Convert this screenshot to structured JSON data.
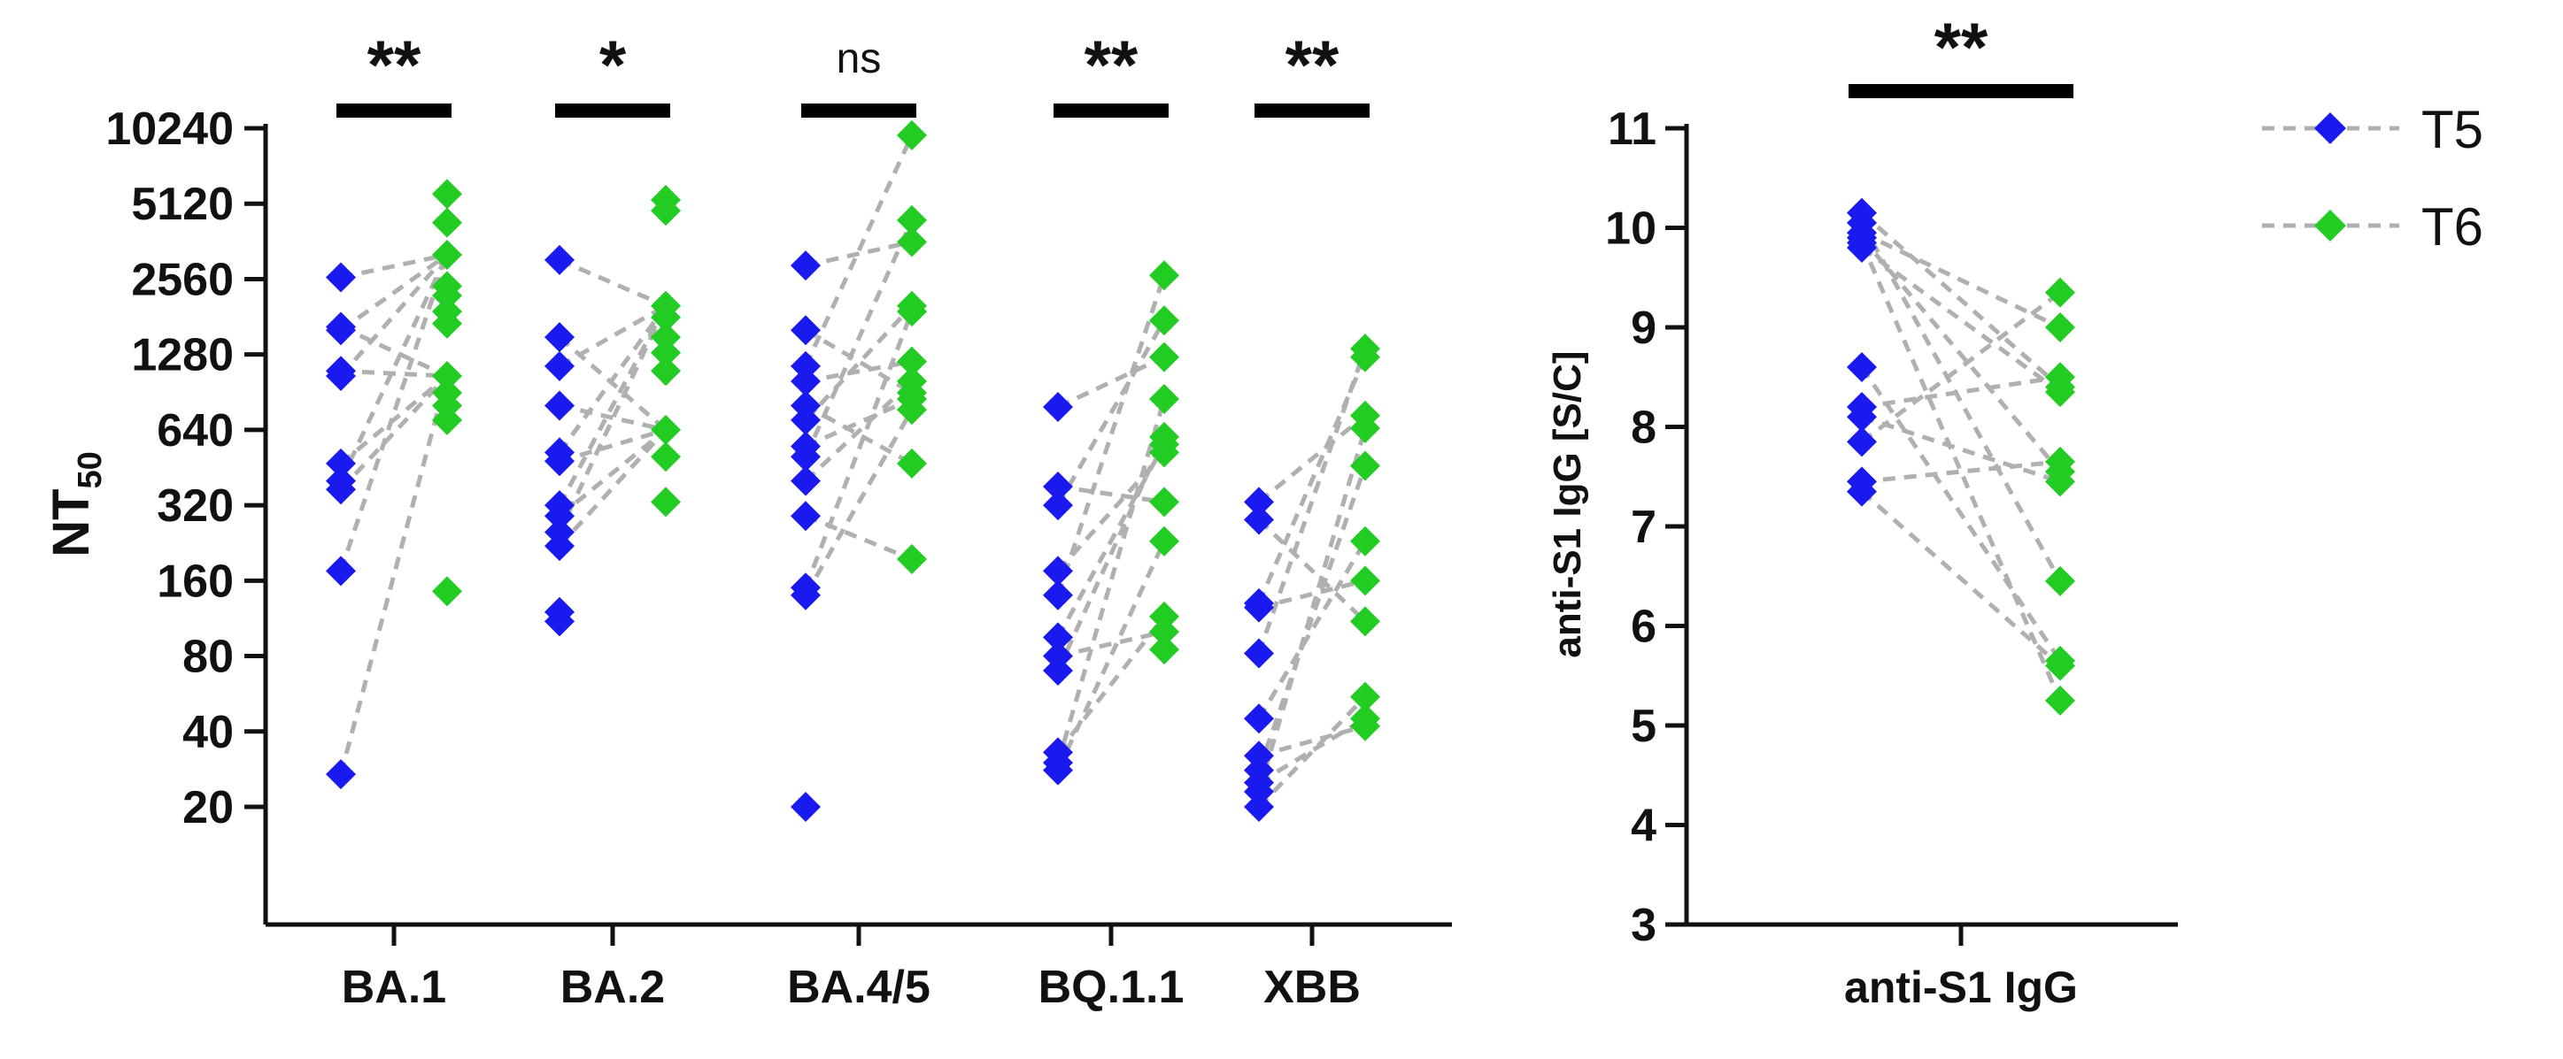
{
  "chart_data": [
    {
      "type": "scatter",
      "title": "",
      "ylabel": "NT",
      "ylabel_subscript": "50",
      "y_scale": "log2",
      "y_ticks": [
        20,
        40,
        80,
        160,
        320,
        640,
        1280,
        2560,
        5120,
        10240
      ],
      "y_tick_labels": [
        "20",
        "40",
        "80",
        "160",
        "320",
        "640",
        "1280",
        "2560",
        "5120",
        "10240"
      ],
      "categories": [
        "BA.1",
        "BA.2",
        "BA.4/5",
        "BQ.1.1",
        "XBB"
      ],
      "significance": [
        "**",
        "*",
        "ns",
        "**",
        "**"
      ],
      "paired_lines": true,
      "series": [
        {
          "name": "T5",
          "color": "#1a1aee",
          "values": [
            [
              2600,
              1650,
              1600,
              1100,
              1050,
              470,
              400,
              370,
              175,
              27
            ],
            [
              3050,
              1500,
              1150,
              800,
              520,
              480,
              320,
              290,
              250,
              220,
              120,
              110
            ],
            [
              2900,
              1600,
              1150,
              1000,
              800,
              700,
              550,
              500,
              400,
              290,
              150,
              140,
              20
            ],
            [
              790,
              380,
              320,
              175,
              140,
              95,
              80,
              70,
              33,
              30,
              28
            ],
            [
              330,
              280,
              130,
              125,
              82,
              45,
              32,
              28,
              25,
              23,
              20
            ]
          ]
        },
        {
          "name": "T6",
          "color": "#22cc22",
          "values": [
            [
              5600,
              4300,
              3200,
              2400,
              2200,
              1900,
              1700,
              1050,
              900,
              800,
              700,
              145
            ],
            [
              5300,
              4800,
              2000,
              1800,
              1500,
              1300,
              1100,
              640,
              500,
              330
            ],
            [
              9600,
              4400,
              3600,
              2000,
              1900,
              1200,
              1000,
              900,
              850,
              770,
              470,
              195
            ],
            [
              2650,
              1750,
              1250,
              850,
              600,
              560,
              520,
              330,
              230,
              115,
              100,
              85
            ],
            [
              1350,
              1250,
              730,
              650,
              460,
              230,
              160,
              110,
              55,
              45,
              42
            ]
          ]
        }
      ]
    },
    {
      "type": "scatter",
      "title": "",
      "ylabel": "anti-S1 IgG [S/C]",
      "ylim": [
        3,
        11
      ],
      "y_ticks": [
        3,
        4,
        5,
        6,
        7,
        8,
        9,
        10,
        11
      ],
      "y_tick_labels": [
        "3",
        "4",
        "5",
        "6",
        "7",
        "8",
        "9",
        "10",
        "11"
      ],
      "categories": [
        "anti-S1 IgG"
      ],
      "significance": [
        "**"
      ],
      "paired_lines": true,
      "series": [
        {
          "name": "T5",
          "color": "#1a1aee",
          "values": [
            [
              10.15,
              10.05,
              9.95,
              9.9,
              9.85,
              9.8,
              8.6,
              8.2,
              8.1,
              7.85,
              7.45,
              7.35
            ]
          ]
        },
        {
          "name": "T6",
          "color": "#22cc22",
          "values": [
            [
              9.35,
              9.0,
              8.5,
              8.4,
              8.35,
              7.65,
              7.55,
              7.45,
              6.45,
              5.65,
              5.6,
              5.25
            ]
          ]
        }
      ]
    }
  ],
  "legend": {
    "position": "top-right",
    "line_style": "dashed",
    "items": [
      {
        "label": "T5",
        "color": "#1a1aee"
      },
      {
        "label": "T6",
        "color": "#22cc22"
      }
    ]
  }
}
